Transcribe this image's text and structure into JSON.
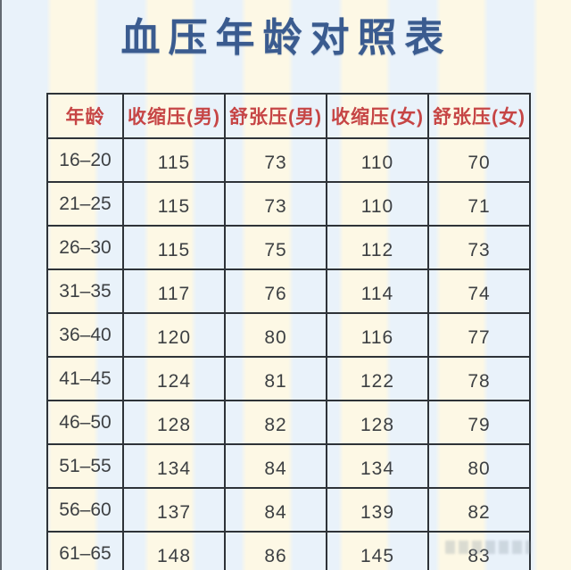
{
  "title": "血压年龄对照表",
  "chart_data": {
    "type": "table",
    "title": "血压年龄对照表",
    "columns": [
      "年龄",
      "收缩压(男)",
      "舒张压(男)",
      "收缩压(女)",
      "舒张压(女)"
    ],
    "rows": [
      [
        "16–20",
        "115",
        "73",
        "110",
        "70"
      ],
      [
        "21–25",
        "115",
        "73",
        "110",
        "71"
      ],
      [
        "26–30",
        "115",
        "75",
        "112",
        "73"
      ],
      [
        "31–35",
        "117",
        "76",
        "114",
        "74"
      ],
      [
        "36–40",
        "120",
        "80",
        "116",
        "77"
      ],
      [
        "41–45",
        "124",
        "81",
        "122",
        "78"
      ],
      [
        "46–50",
        "128",
        "82",
        "128",
        "79"
      ],
      [
        "51–55",
        "134",
        "84",
        "134",
        "80"
      ],
      [
        "56–60",
        "137",
        "84",
        "139",
        "82"
      ],
      [
        "61–65",
        "148",
        "86",
        "145",
        "83"
      ]
    ]
  },
  "colors": {
    "title": "#3a5b8f",
    "header_text": "#c64545",
    "cell_text": "#3d4043",
    "table_border": "#2e3338",
    "stripe_blue": "#e9f2fa",
    "stripe_cream": "#fdf8e5"
  }
}
